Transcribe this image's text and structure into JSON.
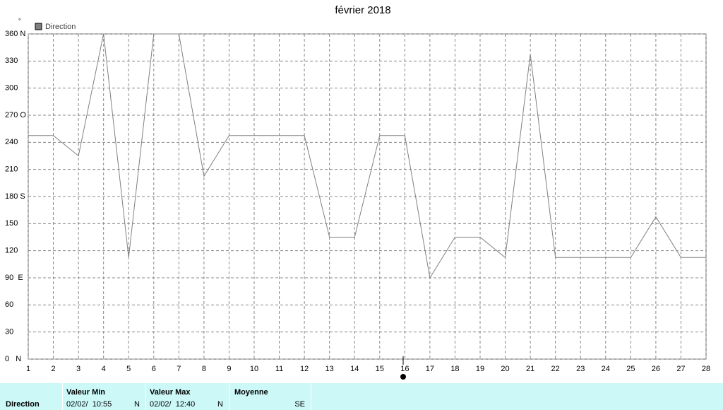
{
  "chart_data": {
    "type": "line",
    "title": "février 2018",
    "y_unit": "°",
    "x": [
      1,
      2,
      3,
      4,
      5,
      6,
      7,
      8,
      9,
      10,
      11,
      12,
      13,
      14,
      15,
      16,
      17,
      18,
      19,
      20,
      21,
      22,
      23,
      24,
      25,
      26,
      27,
      28
    ],
    "series": [
      {
        "name": "Direction",
        "color": "#808080",
        "values": [
          247.5,
          247.5,
          225,
          360,
          112.5,
          360,
          360,
          202.5,
          247.5,
          247.5,
          247.5,
          247.5,
          135,
          135,
          247.5,
          247.5,
          90,
          135,
          135,
          112.5,
          337.5,
          112.5,
          112.5,
          112.5,
          112.5,
          157.5,
          112.5,
          112.5
        ]
      }
    ],
    "xlim": [
      1,
      28
    ],
    "xticks": [
      1,
      2,
      3,
      4,
      5,
      6,
      7,
      8,
      9,
      10,
      11,
      12,
      13,
      14,
      15,
      16,
      17,
      18,
      19,
      20,
      21,
      22,
      23,
      24,
      25,
      26,
      27,
      28
    ],
    "ylim": [
      0,
      360
    ],
    "yticks": [
      {
        "value": 0,
        "label": "0   N"
      },
      30,
      60,
      {
        "value": 90,
        "label": "90  E"
      },
      120,
      150,
      {
        "value": 180,
        "label": "180 S"
      },
      210,
      240,
      {
        "value": 270,
        "label": "270 O"
      },
      300,
      330,
      {
        "value": 360,
        "label": "360 N"
      }
    ],
    "grid": true,
    "legend": "top-left"
  },
  "summary": {
    "row_label": "Direction",
    "columns": [
      {
        "header": "Valeur Min",
        "date": "02/02/  10:55",
        "value": "N"
      },
      {
        "header": "Valeur Max",
        "date": "02/02/  12:40",
        "value": "N"
      },
      {
        "header": "Moyenne",
        "value": "SE"
      }
    ]
  }
}
